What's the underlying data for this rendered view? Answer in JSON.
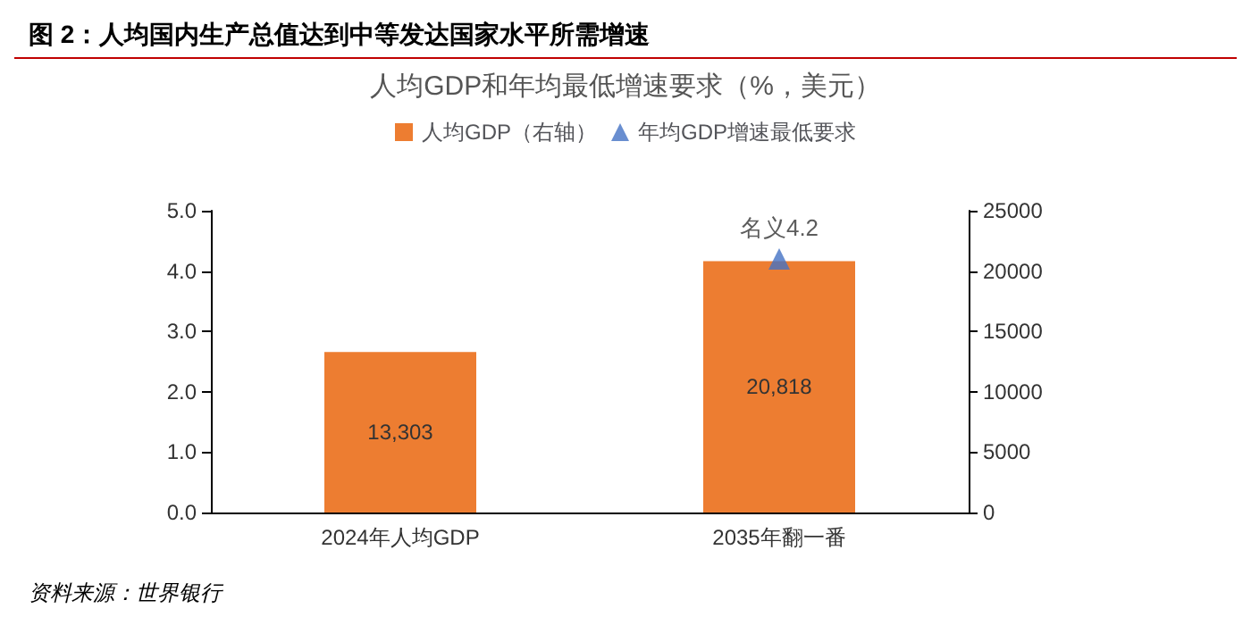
{
  "chart_data": {
    "type": "bar",
    "title": "人均GDP和年均最低增速要求（%，美元）",
    "annotations": [
      "图 2：人均国内生产总值达到中等发达国家水平所需增速",
      "资料来源：世界银行"
    ],
    "categories": [
      "2024年人均GDP",
      "2035年翻一番"
    ],
    "series": [
      {
        "name": "人均GDP（右轴）",
        "axis": "y2",
        "color": "#ed7d31",
        "values": [
          13303,
          20818
        ],
        "value_labels": [
          "13,303",
          "20,818"
        ]
      },
      {
        "name": "年均GDP增速最低要求",
        "type": "scatter",
        "color": "#4472c4",
        "marker": "triangle",
        "values": [
          null,
          4.2
        ],
        "value_labels": [
          null,
          "名义4.2"
        ]
      }
    ],
    "ylim": [
      0,
      5
    ],
    "yticks": [
      {
        "value": 0,
        "label": "0.0"
      },
      {
        "value": 1,
        "label": "1.0"
      },
      {
        "value": 2,
        "label": "2.0"
      },
      {
        "value": 3,
        "label": "3.0"
      },
      {
        "value": 4,
        "label": "4.0"
      },
      {
        "value": 5,
        "label": "5.0"
      }
    ],
    "y2lim": [
      0,
      25000
    ],
    "y2ticks": [
      0,
      5000,
      10000,
      15000,
      20000,
      25000
    ],
    "legend": "top",
    "grid": false
  }
}
